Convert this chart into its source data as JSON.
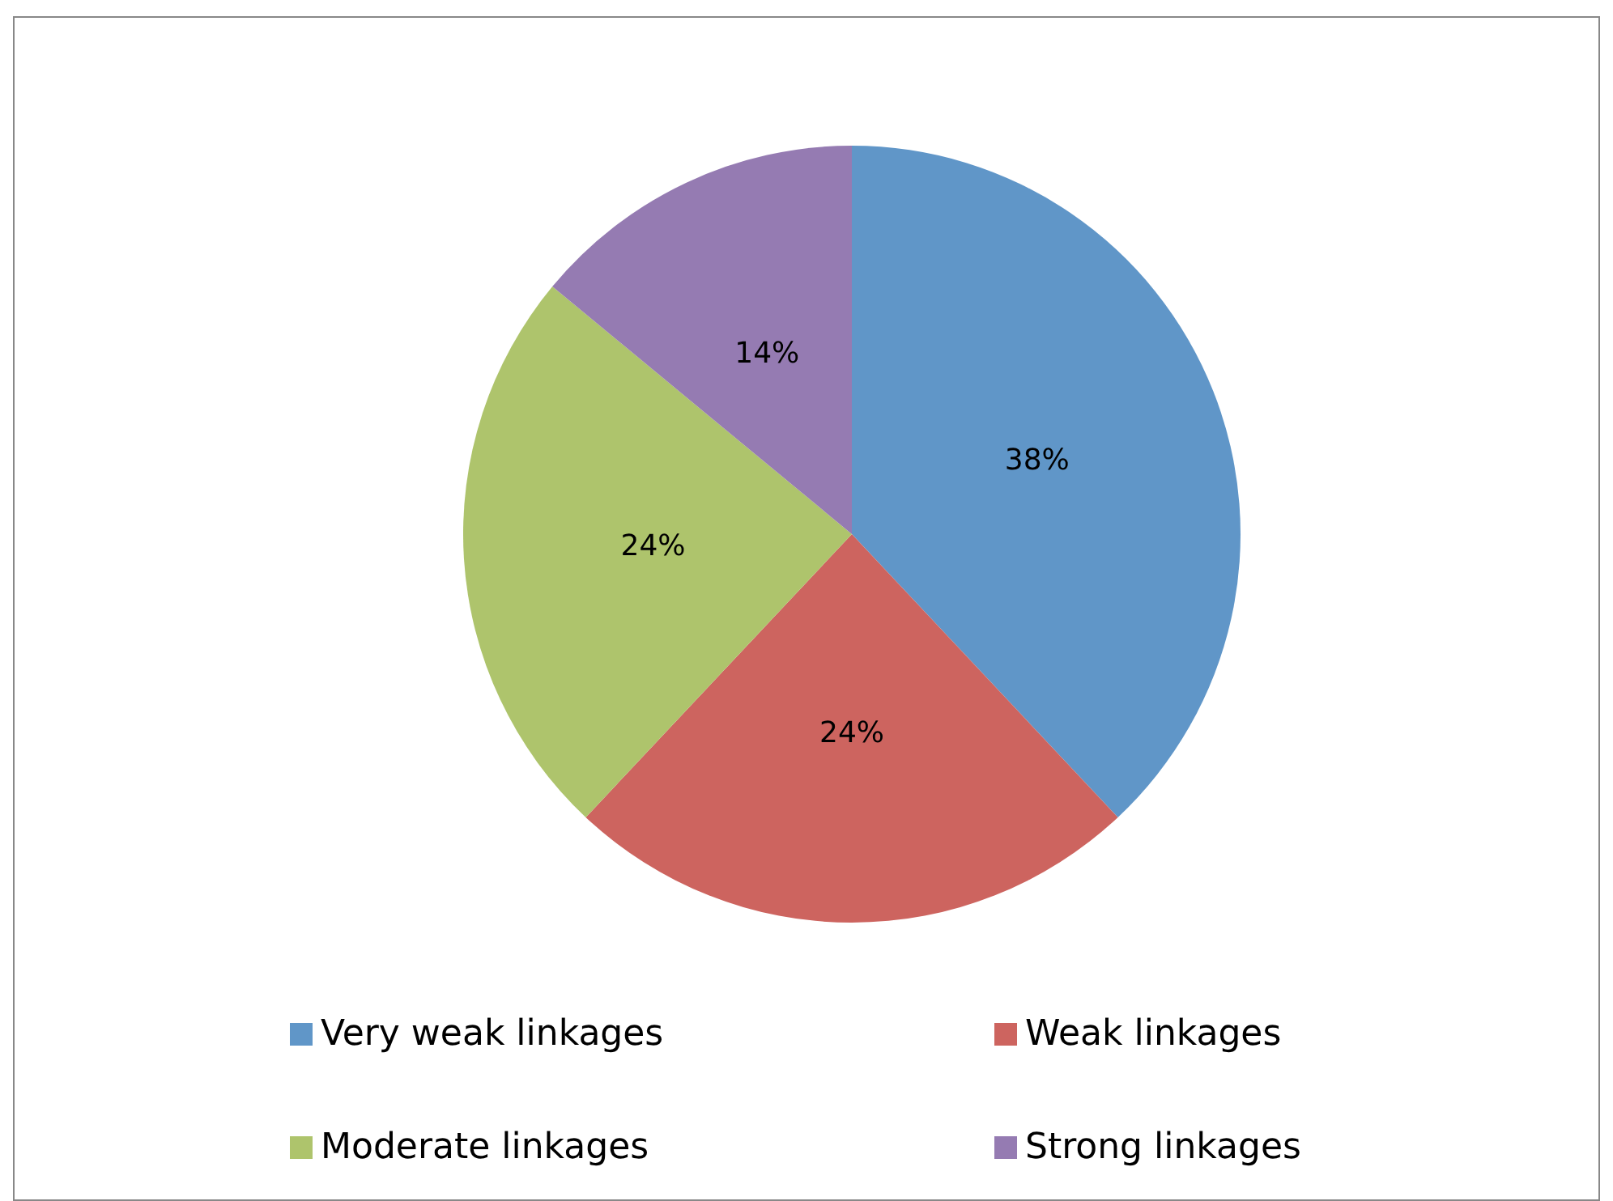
{
  "chart_data": {
    "type": "pie",
    "categories": [
      "Very weak linkages",
      "Weak linkages",
      "Moderate linkages",
      "Strong linkages"
    ],
    "values": [
      38,
      24,
      24,
      14
    ],
    "colors": [
      "#6096c8",
      "#cd645f",
      "#aec46c",
      "#957bb2"
    ],
    "value_labels": [
      "38%",
      "24%",
      "24%",
      "14%"
    ],
    "legend": "bottom"
  }
}
